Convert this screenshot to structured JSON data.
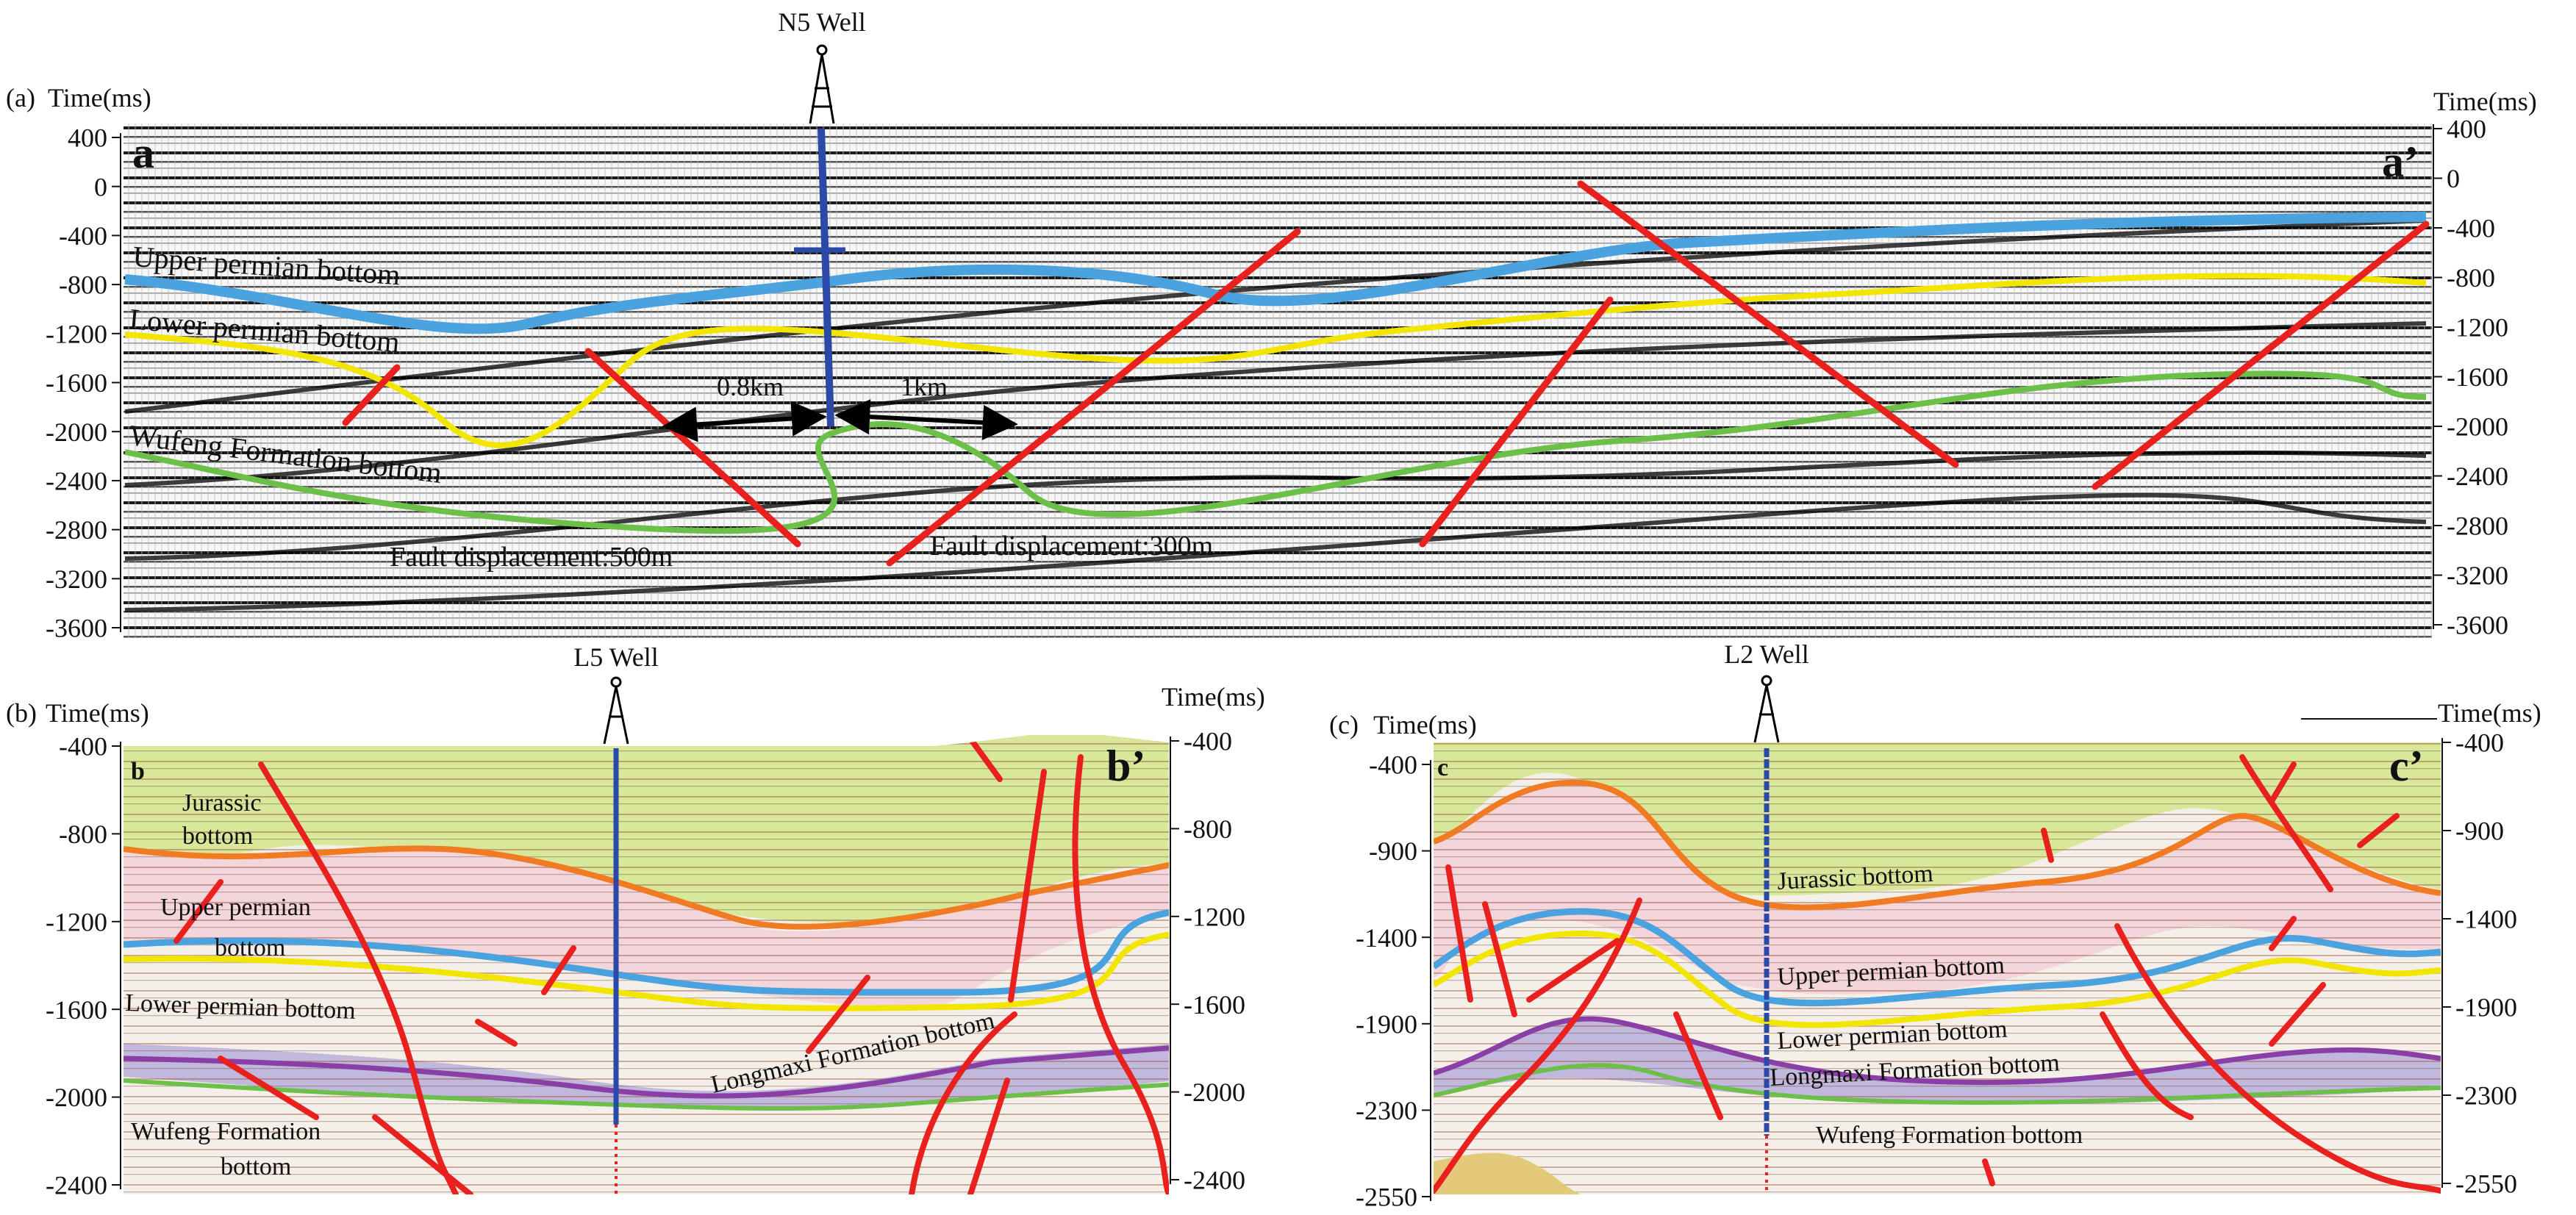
{
  "panel_a": {
    "tag": "(a)",
    "time_label_left": "Time(ms)",
    "time_label_right": "Time(ms)",
    "corner_left": "a",
    "corner_right": "a’",
    "well": "N5 Well",
    "ticks": [
      "400",
      "0",
      "-400",
      "-800",
      "-1200",
      "-1600",
      "-2000",
      "-2400",
      "-2800",
      "-3200",
      "-3600"
    ],
    "horizons": {
      "upper_permian": "Upper permian bottom",
      "lower_permian": "Lower permian bottom",
      "wufeng": "Wufeng Formation bottom"
    },
    "dist_left": "0.8km",
    "dist_right": "1km",
    "fault_disp_1": "Fault displacement:500m",
    "fault_disp_2": "Fault displacement:300m"
  },
  "panel_b": {
    "tag": "(b)",
    "time_label_left": "Time(ms)",
    "time_label_right": "Time(ms)",
    "corner_left": "b",
    "corner_right": "b’",
    "well": "L5 Well",
    "ticks": [
      "-400",
      "-800",
      "-1200",
      "-1600",
      "-2000",
      "-2400"
    ],
    "jurassic_1": "Jurassic",
    "jurassic_2": "bottom",
    "upper_permian_1": "Upper permian",
    "upper_permian_2": "bottom",
    "lower_permian": "Lower permian bottom",
    "longmaxi": "Longmaxi Formation bottom",
    "wufeng_1": "Wufeng Formation",
    "wufeng_2": "bottom"
  },
  "panel_c": {
    "tag": "(c)",
    "time_label_left": "Time(ms)",
    "time_label_right": "Time(ms)",
    "corner_left": "c",
    "corner_right": "c’",
    "well": "L2 Well",
    "ticks": [
      "-400",
      "-900",
      "-1400",
      "-1900",
      "-2300",
      "-2550"
    ],
    "jurassic": "Jurassic bottom",
    "upper_permian": "Upper permian bottom",
    "lower_permian": "Lower permian bottom",
    "longmaxi": "Longmaxi Formation bottom",
    "wufeng": "Wufeng Formation bottom"
  },
  "colors": {
    "upper_permian": "#4aa3df",
    "lower_permian": "#f2e600",
    "wufeng": "#6cc04a",
    "fault": "#e8201e",
    "well": "#2b4aa8",
    "jurassic_fill": "#d8e89a",
    "pink_fill": "#f3d6dc",
    "purple_fill": "#b7aedb",
    "orange_line": "#f07b22",
    "longmaxi_line": "#8a3fa6"
  }
}
